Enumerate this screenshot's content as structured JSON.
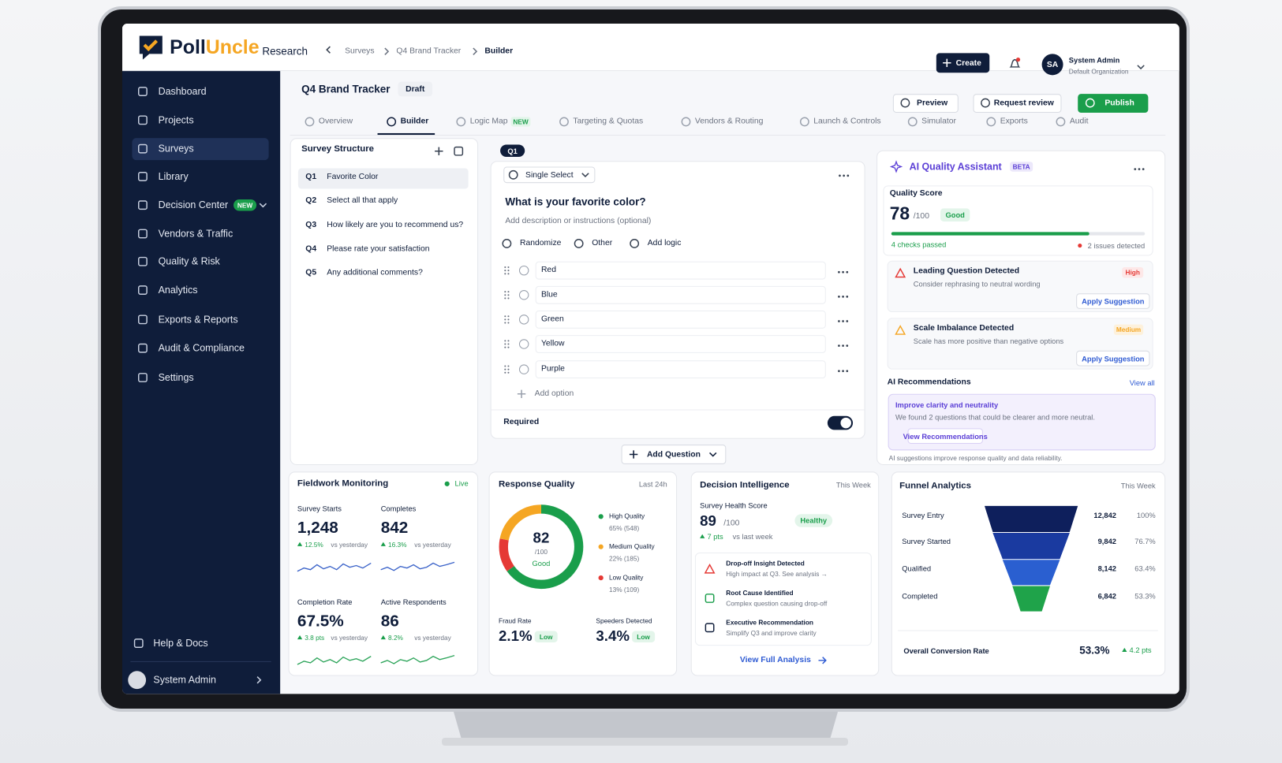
{
  "header": {
    "brand_first": "Poll",
    "brand_second": "Uncle",
    "brand_suffix": "Research",
    "breadcrumb": [
      "Surveys",
      "Q4 Brand Tracker",
      "Builder"
    ],
    "create": "Create",
    "user": {
      "initials": "SA",
      "name": "System Admin",
      "organization": "Default Organization"
    }
  },
  "sidebar": {
    "nav": [
      {
        "label": "Dashboard"
      },
      {
        "label": "Projects"
      },
      {
        "label": "Surveys"
      },
      {
        "label": "Library"
      },
      {
        "label": "Decision Center",
        "badge": "NEW"
      },
      {
        "label": "Vendors & Traffic"
      },
      {
        "label": "Quality & Risk"
      },
      {
        "label": "Analytics"
      },
      {
        "label": "Exports & Reports"
      },
      {
        "label": "Audit & Compliance"
      },
      {
        "label": "Settings"
      }
    ],
    "help": "Help & Docs",
    "user": "System Admin"
  },
  "page": {
    "title": "Q4 Brand Tracker",
    "status": "Draft",
    "actions": [
      "Preview",
      "Request review",
      "Publish"
    ],
    "tabs": [
      {
        "label": "Overview"
      },
      {
        "label": "Builder"
      },
      {
        "label": "Logic Map",
        "badge": "NEW"
      },
      {
        "label": "Targeting & Quotas"
      },
      {
        "label": "Vendors & Routing"
      },
      {
        "label": "Launch & Controls"
      },
      {
        "label": "Simulator"
      },
      {
        "label": "Exports"
      },
      {
        "label": "Audit"
      }
    ]
  },
  "structure": {
    "title": "Survey Structure",
    "questions": [
      {
        "id": "Q1",
        "text": "Favorite Color"
      },
      {
        "id": "Q2",
        "text": "Select all that apply"
      },
      {
        "id": "Q3",
        "text": "How likely are you to recommend us?"
      },
      {
        "id": "Q4",
        "text": "Please rate your satisfaction"
      },
      {
        "id": "Q5",
        "text": "Any additional comments?"
      }
    ]
  },
  "editor": {
    "tag": "Q1",
    "type": "Single Select",
    "question": "What is your favorite color?",
    "description": "Add description or instructions (optional)",
    "tools": [
      "Randomize",
      "Other",
      "Add logic"
    ],
    "options": [
      "Red",
      "Blue",
      "Green",
      "Yellow",
      "Purple"
    ],
    "add_option": "Add option",
    "required": "Required",
    "add_question": "Add Question"
  },
  "assistant": {
    "title": "AI Quality Assistant",
    "badge": "BETA",
    "score_label": "Quality Score",
    "score": 78,
    "score_max": "/100",
    "rating": "Good",
    "checks": "4 checks passed",
    "issues_count": "2 issues detected",
    "issues": [
      {
        "title": "Leading Question Detected",
        "description": "Consider rephrasing to neutral wording",
        "severity": "High",
        "action": "Apply Suggestion"
      },
      {
        "title": "Scale Imbalance Detected",
        "description": "Scale has more positive than negative options",
        "severity": "Medium",
        "action": "Apply Suggestion"
      }
    ],
    "recommendations_title": "AI Recommendations",
    "view_all": "View all",
    "recommendation": {
      "title": "Improve clarity and neutrality",
      "description": "We found 2 questions that could be clearer and more neutral.",
      "action": "View Recommendations"
    },
    "note": "AI suggestions improve response quality and data reliability."
  },
  "fieldwork": {
    "title": "Fieldwork Monitoring",
    "status": "Live",
    "metrics": [
      {
        "label": "Survey Starts",
        "value": "1,248",
        "delta": "12.5%",
        "compare": "vs yesterday"
      },
      {
        "label": "Completes",
        "value": "842",
        "delta": "16.3%",
        "compare": "vs yesterday"
      },
      {
        "label": "Completion Rate",
        "value": "67.5%",
        "delta": "3.8 pts",
        "compare": "vs yesterday"
      },
      {
        "label": "Active Respondents",
        "value": "86",
        "delta": "8.2%",
        "compare": "vs yesterday"
      }
    ]
  },
  "response_quality": {
    "title": "Response Quality",
    "period": "Last 24h",
    "score": "82",
    "score_max": "/100",
    "rating": "Good",
    "segments": [
      {
        "name": "High Quality",
        "share": 65,
        "label": "65% (548)",
        "color": "#1a9e4b"
      },
      {
        "name": "Medium Quality",
        "share": 22,
        "label": "22% (185)",
        "color": "#f5a623"
      },
      {
        "name": "Low Quality",
        "share": 13,
        "label": "13% (109)",
        "color": "#e53935"
      }
    ],
    "fraud": {
      "label": "Fraud Rate",
      "value": "2.1%",
      "status": "Low"
    },
    "speeders": {
      "label": "Speeders Detected",
      "value": "3.4%",
      "status": "Low"
    }
  },
  "decision": {
    "title": "Decision Intelligence",
    "period": "This Week",
    "health_label": "Survey Health Score",
    "score": "89",
    "score_max": "/100",
    "status": "Healthy",
    "delta": "7 pts",
    "compare": "vs last week",
    "items": [
      {
        "title": "Drop-off Insight Detected",
        "description": "High impact at Q3. See analysis →"
      },
      {
        "title": "Root Cause Identified",
        "description": "Complex question causing drop-off"
      },
      {
        "title": "Executive Recommendation",
        "description": "Simplify Q3 and improve clarity"
      }
    ],
    "link": "View Full Analysis"
  },
  "funnel": {
    "title": "Funnel Analytics",
    "period": "This Week",
    "stages": [
      {
        "name": "Survey Entry",
        "count": "12,842",
        "percent": "100%"
      },
      {
        "name": "Survey Started",
        "count": "9,842",
        "percent": "76.7%"
      },
      {
        "name": "Qualified",
        "count": "8,142",
        "percent": "63.4%"
      },
      {
        "name": "Completed",
        "count": "6,842",
        "percent": "53.3%"
      }
    ],
    "conversion_label": "Overall Conversion Rate",
    "conversion": "53.3%",
    "conversion_delta": "4.2 pts"
  }
}
